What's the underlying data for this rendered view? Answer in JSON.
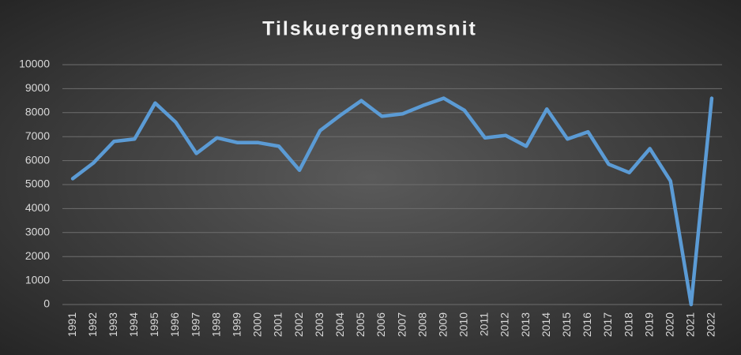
{
  "chart_data": {
    "type": "line",
    "title": "Tilskuergennemsnit",
    "categories": [
      "1991",
      "1992",
      "1993",
      "1994",
      "1995",
      "1996",
      "1997",
      "1998",
      "1999",
      "2000",
      "2001",
      "2002",
      "2003",
      "2004",
      "2005",
      "2006",
      "2007",
      "2008",
      "2009",
      "2010",
      "2011",
      "2012",
      "2013",
      "2014",
      "2015",
      "2016",
      "2017",
      "2018",
      "2019",
      "2020",
      "2021",
      "2022"
    ],
    "values": [
      5250,
      5900,
      6800,
      6900,
      8400,
      7600,
      6300,
      6950,
      6750,
      6750,
      6600,
      5600,
      7250,
      7900,
      8500,
      7850,
      7950,
      8300,
      8600,
      8100,
      6950,
      7050,
      6600,
      8150,
      6900,
      7200,
      5850,
      5500,
      6500,
      5150,
      0,
      8600
    ],
    "color": "#5b9bd5",
    "ylim": [
      0,
      10000
    ],
    "yticks": [
      0,
      1000,
      2000,
      3000,
      4000,
      5000,
      6000,
      7000,
      8000,
      9000,
      10000
    ],
    "grid": true
  }
}
